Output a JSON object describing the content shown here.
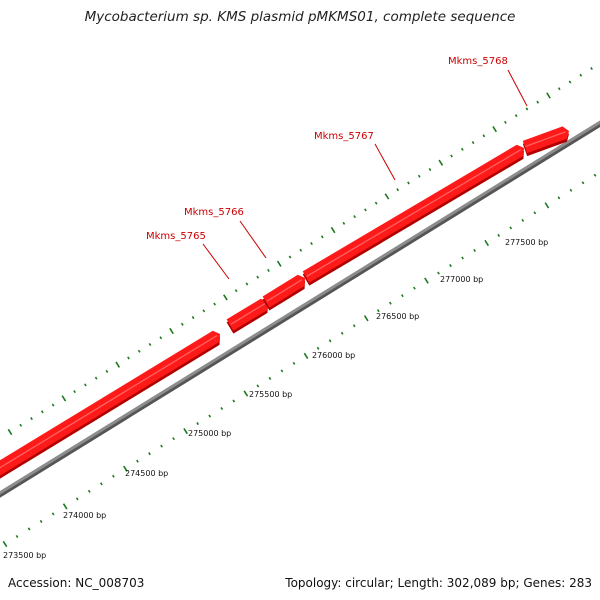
{
  "title": "Mycobacterium sp. KMS plasmid pMKMS01, complete sequence",
  "footer": {
    "accession": "Accession: NC_008703",
    "stats": "Topology: circular; Length: 302,089 bp; Genes: 283"
  },
  "colors": {
    "gene": "#ff1a1a",
    "gene_label": "#cc0000",
    "backbone": "#8c8c8c",
    "ticks": "#1e7a1e"
  },
  "genes": [
    {
      "name": "Mkms_5765"
    },
    {
      "name": "Mkms_5766"
    },
    {
      "name": "Mkms_5767"
    },
    {
      "name": "Mkms_5768"
    }
  ],
  "scale_labels": [
    "273500 bp",
    "274000 bp",
    "274500 bp",
    "275000 bp",
    "275500 bp",
    "276000 bp",
    "276500 bp",
    "277000 bp",
    "277500 bp"
  ]
}
